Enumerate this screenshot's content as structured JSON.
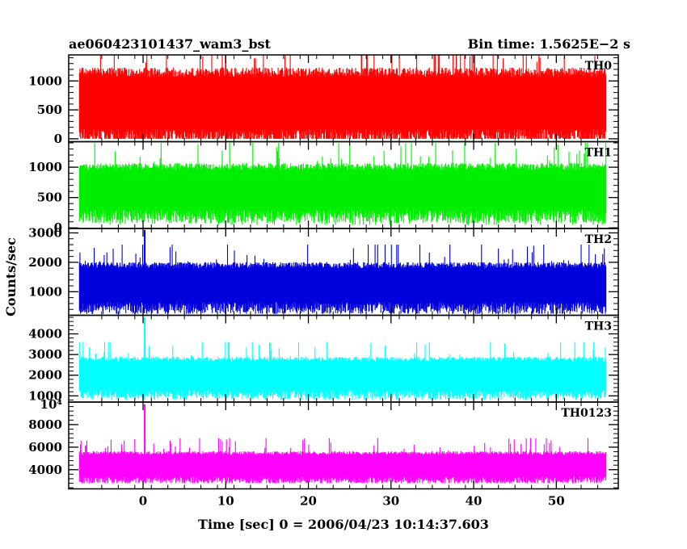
{
  "header": {
    "left_title": "ae060423101437_wam3_bst",
    "right_title": "Bin time: 1.5625E−2 s"
  },
  "chart_data": {
    "type": "line",
    "xlabel": "Time [sec] 0 = 2006/04/23 10:14:37.603",
    "ylabel": "Counts/sec",
    "xlim": [
      -9,
      57.5
    ],
    "data_range": [
      -7.7,
      56.0
    ],
    "x_ticks": [
      0,
      10,
      20,
      30,
      40,
      50
    ],
    "x_tick_labels": [
      "0",
      "10",
      "20",
      "30",
      "40",
      "50"
    ],
    "spike_at": 0.2,
    "panels": [
      {
        "label": "TH0",
        "color": "#ff0000",
        "ylim": [
          -50,
          1450
        ],
        "y_ticks": [
          0,
          500,
          1000
        ],
        "y_tick_labels": [
          "0",
          "500",
          "1000"
        ],
        "band_low": 170,
        "band_high": 1070,
        "min_value": 0,
        "max_value": 1450,
        "spike": null
      },
      {
        "label": "TH1",
        "color": "#00ee00",
        "ylim": [
          -10,
          1420
        ],
        "y_ticks": [
          0,
          500,
          1000
        ],
        "y_tick_labels": [
          "0",
          "500",
          "1000"
        ],
        "band_low": 300,
        "band_high": 950,
        "min_value": 50,
        "max_value": 1400,
        "spike": null
      },
      {
        "label": "TH2",
        "color": "#0000dd",
        "ylim": [
          200,
          3150
        ],
        "y_ticks": [
          1000,
          2000,
          3000
        ],
        "y_tick_labels": [
          "1000",
          "2000",
          "3000"
        ],
        "band_low": 650,
        "band_high": 1800,
        "min_value": 250,
        "max_value": 2600,
        "spike": 3100
      },
      {
        "label": "TH3",
        "color": "#00ffff",
        "ylim": [
          700,
          4900
        ],
        "y_ticks": [
          1000,
          2000,
          3000,
          4000
        ],
        "y_tick_labels": [
          "1000",
          "2000",
          "3000",
          "4000"
        ],
        "band_low": 1300,
        "band_high": 2650,
        "min_value": 800,
        "max_value": 3600,
        "spike": 4800
      },
      {
        "label": "TH0123",
        "color": "#ff00ff",
        "ylim": [
          2300,
          10000
        ],
        "y_ticks": [
          4000,
          6000,
          8000
        ],
        "y_tick_labels": [
          "4000",
          "6000",
          "8000"
        ],
        "top_label": "10⁴",
        "band_low": 3400,
        "band_high": 5300,
        "min_value": 2800,
        "max_value": 6800,
        "spike": 9800
      }
    ]
  }
}
